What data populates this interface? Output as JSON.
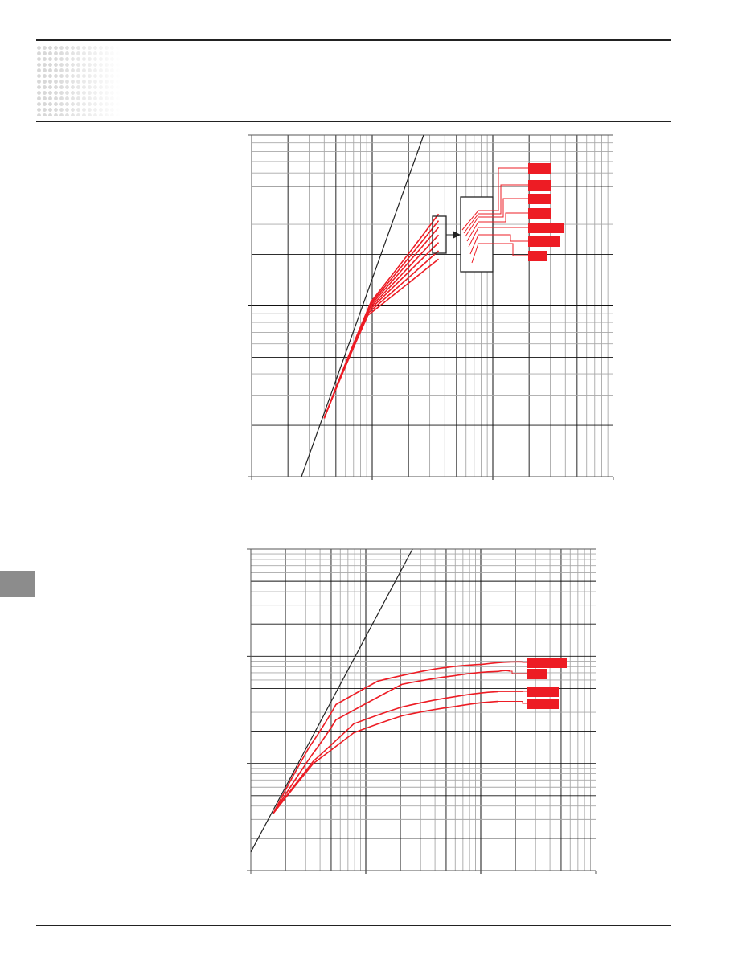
{
  "colors": {
    "curve": "#ed1c24",
    "grid_major": "#111111",
    "grid_minor": "#a8a8a8",
    "tab": "#8c8c8c"
  },
  "chart_data": [
    {
      "type": "line",
      "xscale": "log",
      "yscale": "log",
      "xlim": [
        1,
        1000
      ],
      "ylim": [
        1,
        100
      ],
      "grid": true,
      "reference_line": [
        [
          2.59,
          1
        ],
        [
          26.7,
          100
        ]
      ],
      "series": [
        {
          "values": [
            [
              4,
              2.2
            ],
            [
              9.8,
              10.6
            ],
            [
              35.5,
              34.5
            ]
          ]
        },
        {
          "values": [
            [
              4,
              2.2
            ],
            [
              9.7,
              10.3
            ],
            [
              35.5,
              31.5
            ]
          ]
        },
        {
          "values": [
            [
              4,
              2.2
            ],
            [
              9.6,
              10.0
            ],
            [
              35.5,
              28.8
            ]
          ]
        },
        {
          "values": [
            [
              4,
              2.2
            ],
            [
              9.5,
              9.7
            ],
            [
              35.5,
              26.0
            ]
          ]
        },
        {
          "values": [
            [
              4,
              2.2
            ],
            [
              9.4,
              9.4
            ],
            [
              35.5,
              23.5
            ]
          ]
        },
        {
          "values": [
            [
              4,
              2.2
            ],
            [
              9.3,
              9.1
            ],
            [
              35.5,
              21.0
            ]
          ]
        },
        {
          "values": [
            [
              4,
              2.2
            ],
            [
              9.2,
              8.8
            ],
            [
              35.5,
              18.8
            ]
          ]
        }
      ],
      "legend_labels": 7,
      "has_zoom_inset": true
    },
    {
      "type": "line",
      "xscale": "log",
      "yscale": "log",
      "xlim": [
        1,
        1000
      ],
      "ylim": [
        1,
        1000
      ],
      "grid": true,
      "reference_line": [
        [
          1,
          1.49
        ],
        [
          25.5,
          1000
        ]
      ],
      "series": [
        {
          "values": [
            [
              1.57,
              3.42
            ],
            [
              3.2,
              14
            ],
            [
              5.5,
              35.4
            ],
            [
              12.7,
              58.5
            ],
            [
              40,
              76
            ],
            [
              103,
              84
            ],
            [
              230,
              88.5
            ]
          ]
        },
        {
          "values": [
            [
              1.57,
              3.42
            ],
            [
              3.4,
              12
            ],
            [
              5.5,
              25.5
            ],
            [
              20.6,
              54.6
            ],
            [
              60,
              66
            ],
            [
              141,
              72
            ],
            [
              180,
              72.5
            ]
          ]
        },
        {
          "values": [
            [
              1.57,
              3.42
            ],
            [
              3.5,
              10.5
            ],
            [
              7.85,
              23.4
            ],
            [
              20.6,
              33.6
            ],
            [
              60,
              42
            ],
            [
              141,
              46.7
            ]
          ]
        },
        {
          "values": [
            [
              1.57,
              3.42
            ],
            [
              3.5,
              10
            ],
            [
              7.85,
              19.3
            ],
            [
              20.6,
              27.8
            ],
            [
              60,
              34
            ],
            [
              141,
              37.9
            ]
          ]
        }
      ],
      "legend_labels": 4
    }
  ]
}
